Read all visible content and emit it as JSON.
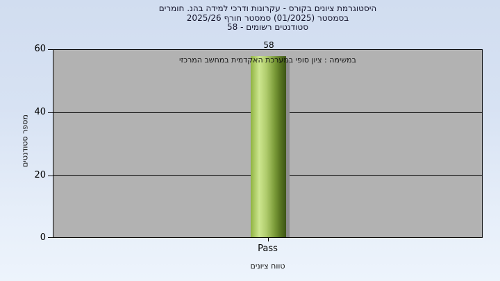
{
  "title": {
    "line1": "היסטוגרמת ציונים בקורס - עקרונות ודרכי למידה בהנ. חומרים",
    "line2": "בסמסטר (01/2025) סמסטר חורף 2025/26",
    "line3": "סטודנטים רשומים - 58"
  },
  "chart_data": {
    "type": "bar",
    "categories": [
      "Pass"
    ],
    "values": [
      58
    ],
    "title": "היסטוגרמת ציונים בקורס - עקרונות ודרכי למידה בהנ. חומרים בסמסטר (01/2025) סמסטר חורף 2025/26, סטודנטים רשומים - 58",
    "annotation": "במשימה : ציון סופי במערכת האקדמית במחשב המרכזי",
    "xlabel": "טווח ציונים",
    "ylabel": "מספר סטודנטים",
    "ylim": [
      0,
      60
    ],
    "yticks": [
      0,
      20,
      40,
      60
    ],
    "grid": "horizontal",
    "legend": "none",
    "colors": {
      "plot_bg": "#b2b2b2",
      "grid_line": "#000000",
      "bar_gradient": [
        "#8fb341",
        "#cde68f",
        "#aecb6b",
        "#7a9a38",
        "#55721f",
        "#3c5414"
      ],
      "bar_shadow": "#8d8d8d",
      "page_bg_top": "#d1ddf0",
      "page_bg_bottom": "#edf4fc",
      "title_text": "#14142b"
    }
  }
}
